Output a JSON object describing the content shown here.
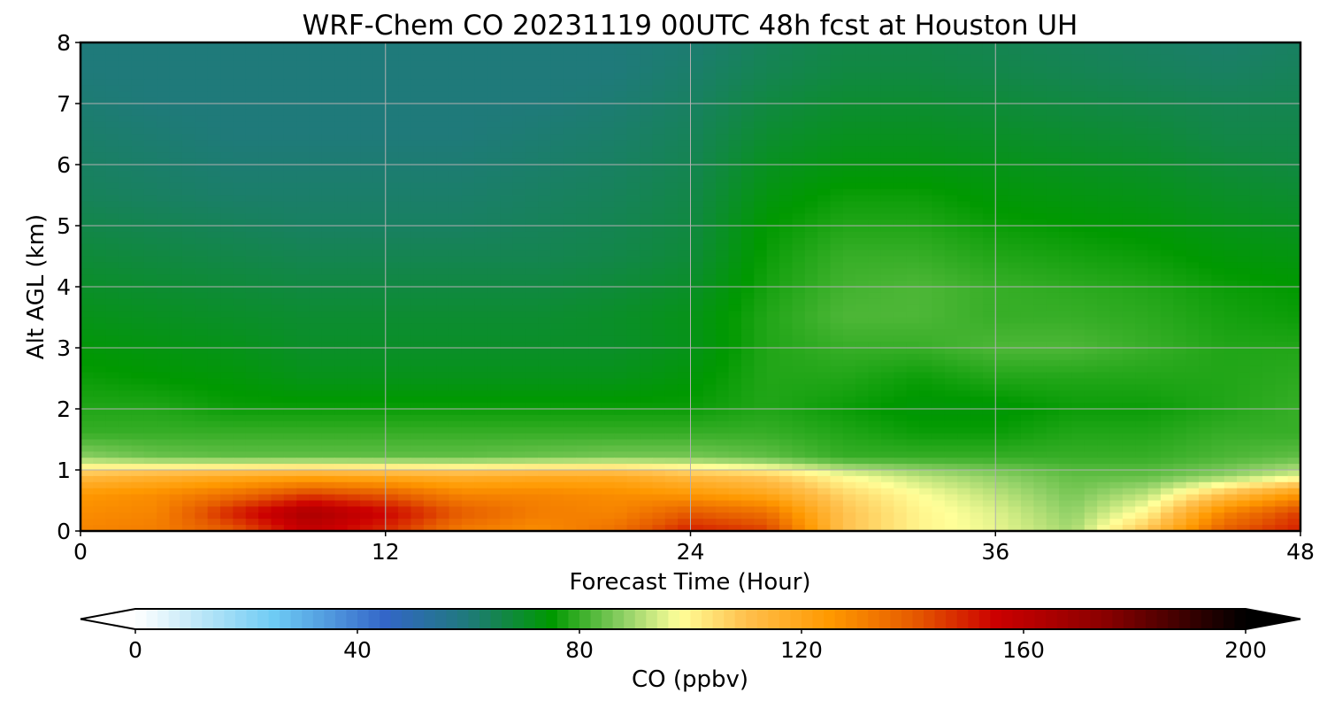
{
  "chart_data": {
    "type": "heatmap",
    "title": "WRF-Chem CO  20231119 00UTC 48h fcst at Houston UH",
    "xlabel": "Forecast Time (Hour)",
    "ylabel": "Alt AGL (km)",
    "xlim": [
      0,
      48
    ],
    "ylim": [
      0,
      8
    ],
    "x_ticks": [
      "0",
      "12",
      "24",
      "36",
      "48"
    ],
    "y_ticks": [
      "0",
      "1",
      "2",
      "3",
      "4",
      "5",
      "6",
      "7",
      "8"
    ],
    "grid": true,
    "colorbar": {
      "label": "CO  (ppbv)",
      "range": [
        0,
        200
      ],
      "ticks": [
        "0",
        "40",
        "80",
        "120",
        "160",
        "200"
      ],
      "extend": "both",
      "stops": [
        {
          "value": 0,
          "color": "#ffffff"
        },
        {
          "value": 10,
          "color": "#c6eaf8"
        },
        {
          "value": 25,
          "color": "#6ecbf4"
        },
        {
          "value": 45,
          "color": "#3366c8"
        },
        {
          "value": 60,
          "color": "#1f7a7a"
        },
        {
          "value": 75,
          "color": "#009900"
        },
        {
          "value": 88,
          "color": "#8fd066"
        },
        {
          "value": 98,
          "color": "#ffff99"
        },
        {
          "value": 110,
          "color": "#ffc04d"
        },
        {
          "value": 125,
          "color": "#ff9900"
        },
        {
          "value": 140,
          "color": "#e65c00"
        },
        {
          "value": 155,
          "color": "#cc0000"
        },
        {
          "value": 175,
          "color": "#880000"
        },
        {
          "value": 200,
          "color": "#000000"
        }
      ]
    },
    "x_hours": [
      0,
      3,
      6,
      9,
      12,
      15,
      18,
      21,
      24,
      27,
      30,
      33,
      36,
      39,
      42,
      45,
      48
    ],
    "alt_km": [
      0.0,
      0.3,
      0.6,
      0.9,
      1.2,
      1.6,
      2.0,
      2.5,
      3.0,
      3.5,
      4.0,
      4.5,
      5.0,
      5.5,
      6.0,
      6.5,
      7.0,
      7.5,
      8.0
    ],
    "values_ppbv": [
      [
        130,
        132,
        140,
        158,
        148,
        132,
        128,
        135,
        150,
        145,
        110,
        100,
        96,
        90,
        110,
        140,
        150
      ],
      [
        128,
        130,
        150,
        165,
        155,
        140,
        132,
        130,
        140,
        135,
        110,
        100,
        95,
        88,
        100,
        130,
        145
      ],
      [
        125,
        128,
        135,
        145,
        140,
        130,
        130,
        128,
        125,
        120,
        106,
        98,
        92,
        86,
        92,
        110,
        125
      ],
      [
        112,
        115,
        118,
        120,
        118,
        116,
        118,
        118,
        112,
        108,
        98,
        92,
        88,
        84,
        84,
        88,
        95
      ],
      [
        88,
        85,
        84,
        84,
        84,
        84,
        85,
        86,
        86,
        84,
        80,
        80,
        80,
        80,
        80,
        82,
        84
      ],
      [
        80,
        80,
        80,
        80,
        80,
        80,
        80,
        80,
        80,
        80,
        78,
        76,
        76,
        78,
        78,
        80,
        80
      ],
      [
        78,
        78,
        76,
        76,
        76,
        76,
        76,
        76,
        76,
        78,
        76,
        74,
        74,
        76,
        76,
        78,
        80
      ],
      [
        76,
        75,
        74,
        72,
        72,
        72,
        72,
        72,
        74,
        78,
        78,
        76,
        78,
        78,
        78,
        78,
        79
      ],
      [
        74,
        73,
        72,
        70,
        70,
        70,
        70,
        70,
        72,
        78,
        80,
        80,
        82,
        82,
        80,
        78,
        78
      ],
      [
        72,
        71,
        70,
        69,
        69,
        69,
        69,
        70,
        72,
        78,
        82,
        82,
        80,
        80,
        79,
        77,
        76
      ],
      [
        70,
        69,
        68,
        67,
        67,
        67,
        67,
        68,
        70,
        77,
        81,
        82,
        80,
        79,
        78,
        76,
        75
      ],
      [
        68,
        67,
        66,
        65,
        65,
        65,
        65,
        66,
        68,
        76,
        80,
        80,
        78,
        77,
        76,
        74,
        73
      ],
      [
        66,
        65,
        64,
        63,
        63,
        63,
        64,
        65,
        67,
        75,
        78,
        78,
        76,
        75,
        74,
        72,
        71
      ],
      [
        64,
        63,
        62,
        62,
        62,
        62,
        63,
        64,
        66,
        73,
        76,
        76,
        74,
        73,
        72,
        70,
        69
      ],
      [
        63,
        62,
        61,
        61,
        61,
        61,
        62,
        63,
        65,
        71,
        73,
        73,
        72,
        71,
        70,
        68,
        67
      ],
      [
        62,
        61,
        60,
        60,
        60,
        60,
        61,
        62,
        64,
        69,
        71,
        71,
        70,
        69,
        68,
        66,
        66
      ],
      [
        61,
        60,
        60,
        60,
        60,
        60,
        60,
        61,
        63,
        67,
        69,
        69,
        68,
        67,
        66,
        65,
        65
      ],
      [
        60,
        60,
        60,
        60,
        60,
        60,
        60,
        60,
        62,
        65,
        67,
        67,
        66,
        65,
        64,
        63,
        64
      ],
      [
        60,
        60,
        60,
        60,
        60,
        60,
        60,
        60,
        61,
        64,
        66,
        66,
        65,
        64,
        63,
        62,
        63
      ]
    ]
  }
}
